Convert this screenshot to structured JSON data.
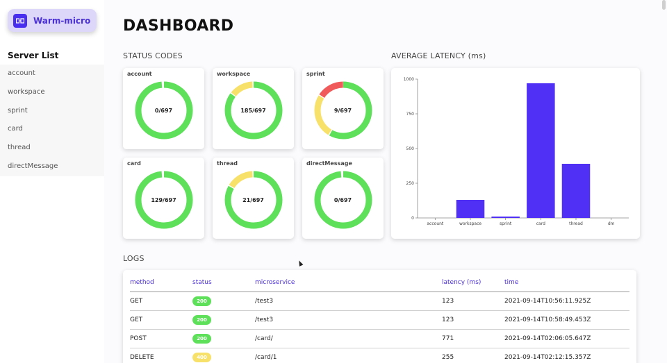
{
  "brand": {
    "name": "Warm-micro",
    "icon": "logo-icon",
    "accent": "#4a2ef0"
  },
  "sidebar": {
    "heading": "Server List",
    "items": [
      "account",
      "workspace",
      "sprint",
      "card",
      "thread",
      "directMessage"
    ]
  },
  "page": {
    "title": "DASHBOARD"
  },
  "status_codes": {
    "label": "STATUS CODES",
    "colors": {
      "ok": "#5ee05a",
      "warn": "#f7e16a",
      "error": "#f05a5a"
    },
    "cards": [
      {
        "name": "account",
        "text": "0/697",
        "segments": [
          {
            "color": "ok",
            "fraction": 0.985
          }
        ]
      },
      {
        "name": "workspace",
        "text": "185/697",
        "segments": [
          {
            "color": "ok",
            "fraction": 0.85
          },
          {
            "color": "warn",
            "fraction": 0.135
          }
        ]
      },
      {
        "name": "sprint",
        "text": "9/697",
        "segments": [
          {
            "color": "ok",
            "fraction": 0.58
          },
          {
            "color": "warn",
            "fraction": 0.25
          },
          {
            "color": "error",
            "fraction": 0.155
          }
        ]
      },
      {
        "name": "card",
        "text": "129/697",
        "segments": [
          {
            "color": "ok",
            "fraction": 0.985
          }
        ]
      },
      {
        "name": "thread",
        "text": "21/697",
        "segments": [
          {
            "color": "ok",
            "fraction": 0.83
          },
          {
            "color": "warn",
            "fraction": 0.155
          }
        ]
      },
      {
        "name": "directMessage",
        "text": "0/697",
        "segments": [
          {
            "color": "ok",
            "fraction": 0.985
          }
        ]
      }
    ]
  },
  "latency": {
    "label": "AVERAGE LATENCY (ms)",
    "chart_data": {
      "type": "bar",
      "categories": [
        "account",
        "workspace",
        "sprint",
        "card",
        "thread",
        "dm"
      ],
      "values": [
        0,
        130,
        10,
        970,
        390,
        0
      ],
      "ylim": [
        0,
        1000
      ],
      "yticks": [
        "0",
        "250",
        "500",
        "750",
        "1000"
      ],
      "color": "#5030f5",
      "title": "",
      "xlabel": "",
      "ylabel": ""
    }
  },
  "logs": {
    "label": "LOGS",
    "columns": {
      "method": "method",
      "status": "status",
      "microservice": "microservice",
      "latency": "latency (ms)",
      "time": "time"
    },
    "rows": [
      {
        "method": "GET",
        "status": "200",
        "status_color": "#5ee05a",
        "microservice": "/test3",
        "latency": "123",
        "time": "2021-09-14T10:56:11.925Z"
      },
      {
        "method": "GET",
        "status": "200",
        "status_color": "#5ee05a",
        "microservice": "/test3",
        "latency": "123",
        "time": "2021-09-14T10:58:49.453Z"
      },
      {
        "method": "POST",
        "status": "200",
        "status_color": "#5ee05a",
        "microservice": "/card/",
        "latency": "771",
        "time": "2021-09-14T02:06:05.647Z"
      },
      {
        "method": "DELETE",
        "status": "400",
        "status_color": "#f7e16a",
        "microservice": "/card/1",
        "latency": "255",
        "time": "2021-09-14T02:12:15.357Z"
      }
    ]
  }
}
